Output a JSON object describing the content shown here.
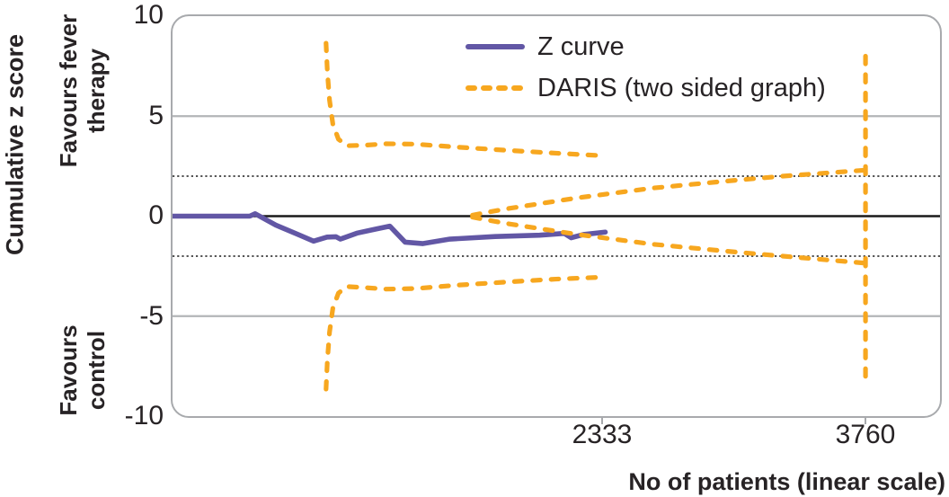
{
  "colors": {
    "z_curve": "#6257a5",
    "daris": "#f7a71f",
    "grid_gray": "#b3b5b7",
    "axis_gray": "#a8aaad",
    "text": "#272325"
  },
  "axes": {
    "y_title": "Cumulative z score",
    "x_title": "No of patients (linear scale)",
    "upper_region_line1": "Favours fever",
    "upper_region_line2": "therapy",
    "lower_region_line1": "Favours",
    "lower_region_line2": "control"
  },
  "legend": {
    "z_curve_label": "Z curve",
    "daris_label": "DARIS (two sided graph)"
  },
  "chart_data": {
    "type": "line",
    "title": "",
    "xlabel": "No of patients (linear scale)",
    "ylabel": "Cumulative z score",
    "xlim": [
      0,
      4170
    ],
    "ylim": [
      -10,
      10
    ],
    "x_ticks": [
      2333,
      3760
    ],
    "y_ticks": [
      10,
      5,
      0,
      -5,
      -10
    ],
    "reference_lines": {
      "zero": 0,
      "dotted": [
        2,
        -2
      ],
      "solid_gray": [
        5,
        -5
      ]
    },
    "region_annotations": {
      "upper": "Favours fever therapy",
      "lower": "Favours control"
    },
    "legend_position": "top-center-inside",
    "grid": "horizontal-only",
    "series": [
      {
        "id": "z-curve",
        "name": "Z curve",
        "style": "solid",
        "color_key": "z_curve",
        "x": [
          0,
          419,
          448,
          560,
          677,
          765,
          838,
          887,
          911,
          1000,
          1100,
          1179,
          1262,
          1359,
          1505,
          1750,
          1992,
          2125,
          2163,
          2230,
          2348
        ],
        "y": [
          0,
          0,
          0.12,
          -0.45,
          -0.9,
          -1.25,
          -1.05,
          -1.03,
          -1.15,
          -0.85,
          -0.65,
          -0.5,
          -1.3,
          -1.37,
          -1.15,
          -1.02,
          -0.95,
          -0.86,
          -1.08,
          -0.92,
          -0.8
        ]
      },
      {
        "id": "daris-upper-boundary",
        "name": "DARIS upper monitoring boundary",
        "style": "dashed",
        "color_key": "daris",
        "x": [
          833,
          840,
          852,
          870,
          900,
          945,
          1050,
          1160,
          1320,
          1550,
          1800,
          2080,
          2343
        ],
        "y": [
          8.65,
          7.2,
          5.8,
          4.6,
          3.85,
          3.52,
          3.55,
          3.62,
          3.6,
          3.45,
          3.3,
          3.15,
          3.02
        ]
      },
      {
        "id": "daris-lower-boundary",
        "name": "DARIS lower monitoring boundary",
        "style": "dashed",
        "color_key": "daris",
        "x": [
          833,
          840,
          852,
          870,
          900,
          945,
          1050,
          1160,
          1320,
          1550,
          1800,
          2080,
          2343
        ],
        "y": [
          -8.65,
          -7.2,
          -5.8,
          -4.6,
          -3.85,
          -3.52,
          -3.58,
          -3.65,
          -3.62,
          -3.45,
          -3.3,
          -3.15,
          -3.05
        ]
      },
      {
        "id": "daris-futility-upper",
        "name": "DARIS inner wedge upper (futility)",
        "style": "dashed",
        "color_key": "daris",
        "x": [
          1627,
          1800,
          2187,
          2600,
          3000,
          3310,
          3760
        ],
        "y": [
          0.05,
          0.35,
          0.9,
          1.4,
          1.75,
          2.0,
          2.3
        ]
      },
      {
        "id": "daris-futility-lower",
        "name": "DARIS inner wedge lower (futility)",
        "style": "dashed",
        "color_key": "daris",
        "x": [
          1627,
          1800,
          2187,
          2600,
          3000,
          3310,
          3760
        ],
        "y": [
          -0.05,
          -0.35,
          -0.9,
          -1.4,
          -1.75,
          -2.0,
          -2.35
        ]
      },
      {
        "id": "daris-required-information-size",
        "name": "DARIS required information size line",
        "style": "dashed",
        "color_key": "daris",
        "x": [
          3760,
          3760
        ],
        "y": [
          8.0,
          -8.15
        ]
      }
    ]
  }
}
